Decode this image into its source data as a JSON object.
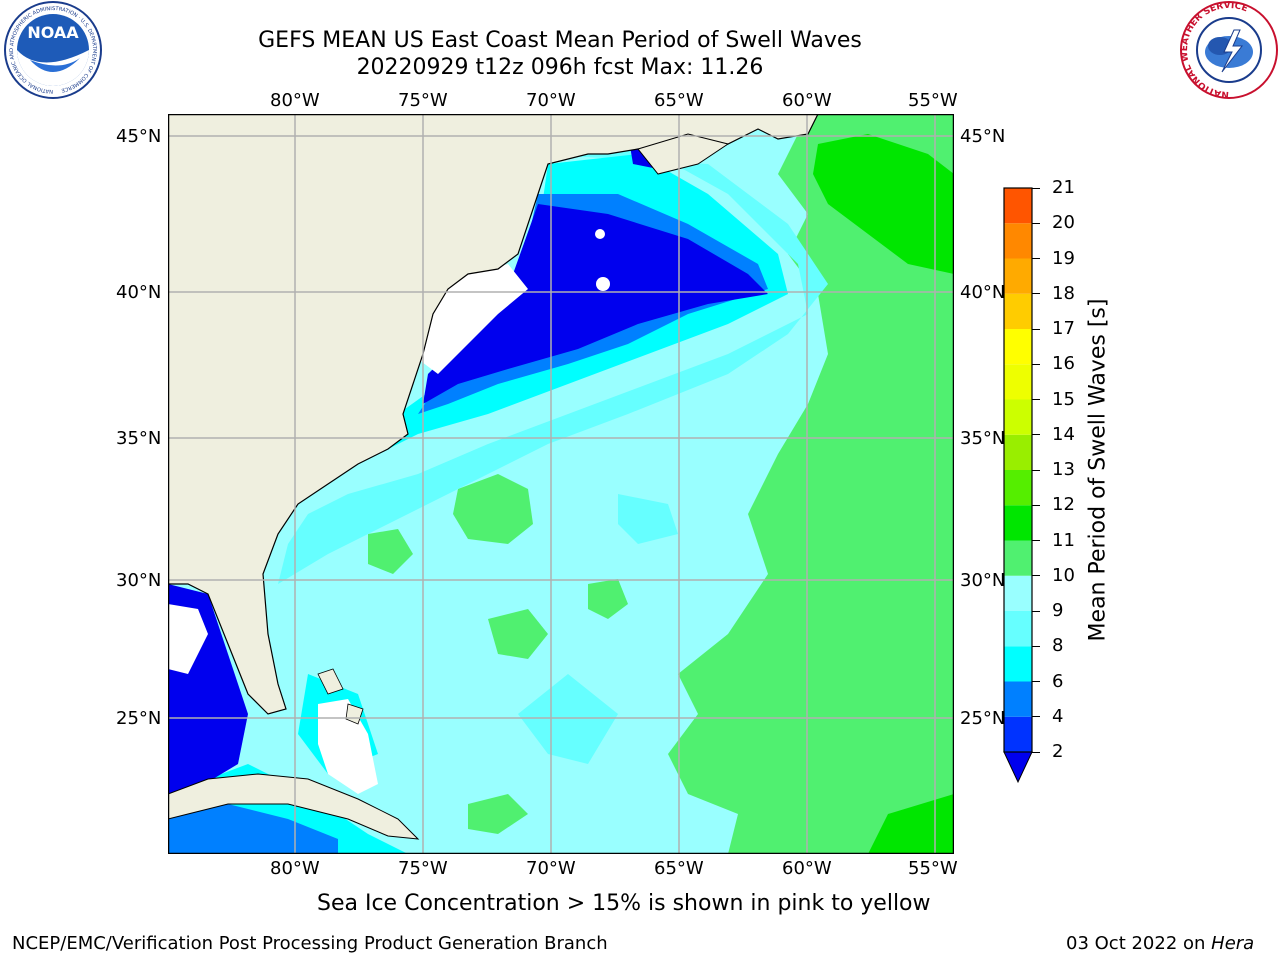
{
  "header": {
    "title_line1": "GEFS MEAN US East Coast Mean Period of Swell Waves",
    "title_line2": "20220929 t12z 096h fcst   Max: 11.26"
  },
  "logos": {
    "left": {
      "text": "NOAA",
      "ring_text": "NATIONAL OCEANIC AND ATMOSPHERIC ADMINISTRATION · U.S. DEPARTMENT OF COMMERCE"
    },
    "right": {
      "ring_text": "NATIONAL WEATHER SERVICE"
    }
  },
  "map": {
    "lon_labels": [
      "80°W",
      "75°W",
      "70°W",
      "65°W",
      "60°W",
      "55°W"
    ],
    "lat_labels": [
      "45°N",
      "40°N",
      "35°N",
      "30°N",
      "25°N"
    ],
    "land_color": "#efefdf",
    "ocean_base_color": "#99ffff",
    "gridline_color": "#b0b0b0"
  },
  "colorbar": {
    "label": "Mean Period of Swell Waves [s]",
    "levels": [
      "2",
      "4",
      "6",
      "8",
      "9",
      "10",
      "11",
      "12",
      "13",
      "14",
      "15",
      "16",
      "17",
      "18",
      "19",
      "20",
      "21"
    ],
    "colors": [
      "#0033ff",
      "#0080ff",
      "#00ffff",
      "#66ffff",
      "#99ffff",
      "#50f070",
      "#00e600",
      "#55ee00",
      "#99ee00",
      "#ccff00",
      "#eeff00",
      "#ffff00",
      "#ffcc00",
      "#ffaa00",
      "#ff8800",
      "#ff5500",
      "#ff2200",
      "#ff0000"
    ],
    "under_color": "#0000ee"
  },
  "caption": "Sea Ice Concentration > 15% is shown in pink to yellow",
  "footer": {
    "left": "NCEP/EMC/Verification Post Processing Product Generation Branch",
    "date": "03 Oct 2022 on ",
    "machine": "Hera"
  }
}
